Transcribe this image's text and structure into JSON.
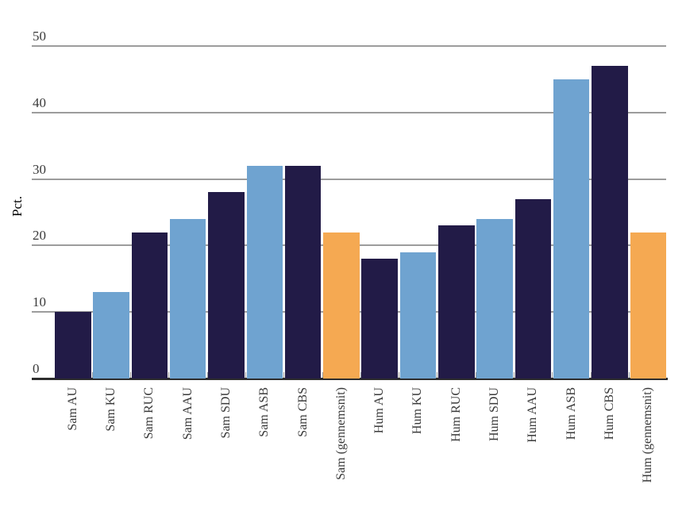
{
  "chart_data": {
    "type": "bar",
    "title": "",
    "ylabel": "Pct.",
    "xlabel": "",
    "ylim": [
      0,
      50
    ],
    "yticks": [
      0,
      10,
      20,
      30,
      40,
      50
    ],
    "grid": true,
    "legend_position": "none",
    "categories": [
      "Sam AU",
      "Sam KU",
      "Sam RUC",
      "Sam AAU",
      "Sam SDU",
      "Sam ASB",
      "Sam CBS",
      "Sam (gennemsnit)",
      "Hum AU",
      "Hum KU",
      "Hum RUC",
      "Hum SDU",
      "Hum AAU",
      "Hum ASB",
      "Hum CBS",
      "Hum (gennemsnit)"
    ],
    "values": [
      10,
      13,
      22,
      24,
      28,
      32,
      32,
      22,
      18,
      19,
      23,
      24,
      27,
      45,
      47,
      22
    ],
    "bar_color_keys": [
      "navy",
      "blue",
      "navy",
      "blue",
      "navy",
      "blue",
      "navy",
      "orange",
      "navy",
      "blue",
      "navy",
      "blue",
      "navy",
      "blue",
      "navy",
      "orange"
    ]
  },
  "colors": {
    "navy": "#221B47",
    "blue": "#6FA3D0",
    "orange": "#F5A952",
    "gridline": "#9C9C9C",
    "axis_line": "#2D2D2D",
    "text": "#3A3A3A"
  }
}
